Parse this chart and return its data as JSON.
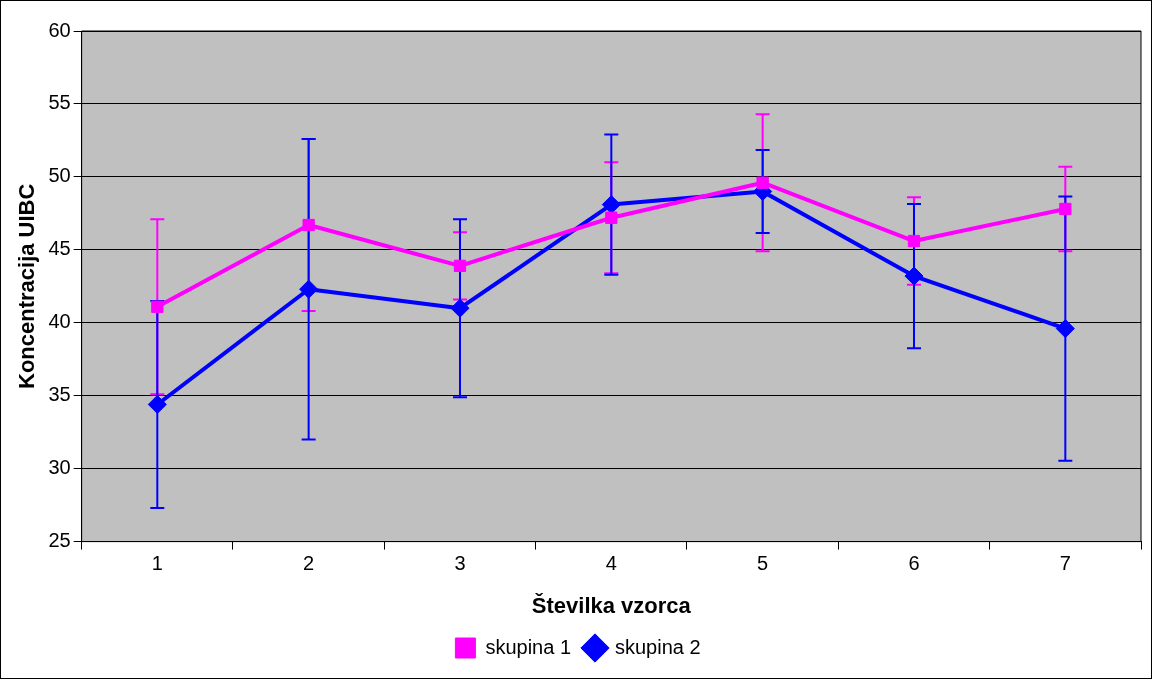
{
  "chart_data": {
    "type": "line",
    "xlabel": "Številka vzorca",
    "ylabel": "Koncentracija UIBC",
    "categories": [
      "1",
      "2",
      "3",
      "4",
      "5",
      "6",
      "7"
    ],
    "series": [
      {
        "name": "skupina 1",
        "color": "#ff00ff",
        "marker": "square",
        "values": [
          41.1,
          46.7,
          43.9,
          47.2,
          49.6,
          45.6,
          47.8
        ],
        "errors": [
          6.0,
          5.9,
          2.3,
          3.8,
          4.7,
          3.0,
          2.9
        ]
      },
      {
        "name": "skupina 2",
        "color": "#0000ff",
        "marker": "diamond",
        "values": [
          34.4,
          42.3,
          41.0,
          48.1,
          49.0,
          43.2,
          39.6
        ],
        "errors": [
          7.1,
          10.3,
          6.1,
          4.8,
          2.85,
          4.95,
          9.05
        ]
      }
    ],
    "ylim": [
      25,
      60
    ],
    "yticks": [
      25,
      30,
      35,
      40,
      45,
      50,
      55,
      60
    ],
    "grid": "y",
    "legend": "bottom",
    "line_style": "solid"
  }
}
